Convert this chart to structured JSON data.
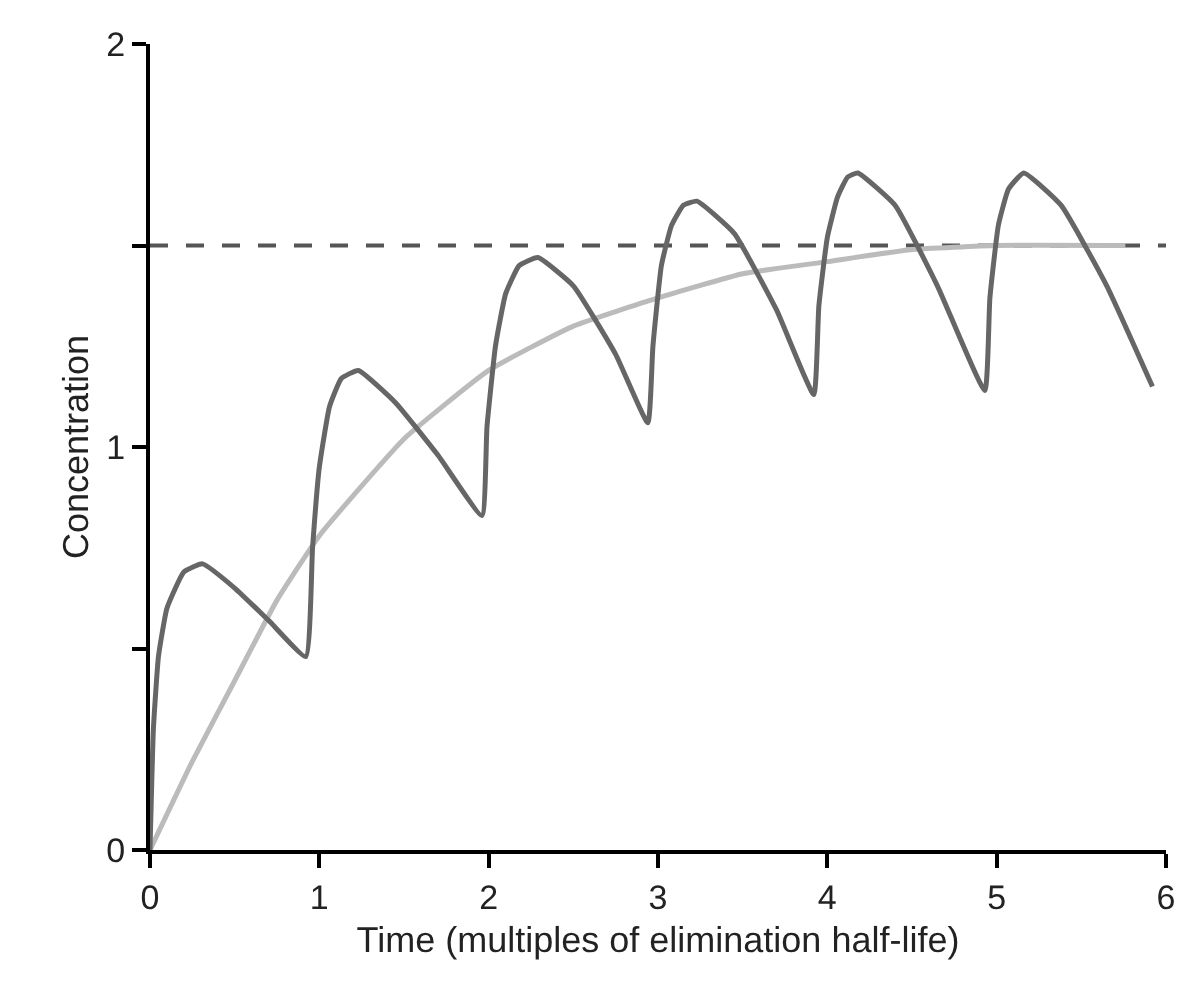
{
  "chart_data": {
    "type": "line",
    "xlabel": "Time (multiples of elimination half-life)",
    "ylabel": "Concentration",
    "xlim": [
      0,
      6
    ],
    "xticks": [
      0,
      1,
      2,
      3,
      4,
      5,
      6
    ],
    "ylim": [
      0,
      2
    ],
    "yticks": [
      0,
      {
        "value": 0.5,
        "label": null
      },
      1,
      {
        "value": 1.5,
        "label": null
      },
      2
    ],
    "grid": false,
    "marker": "none",
    "line_style": "solid",
    "series": [
      {
        "color": "#bbbbbb",
        "x": [
          0,
          0.25,
          0.5,
          0.75,
          1,
          1.5,
          2,
          2.5,
          3,
          3.5,
          4,
          4.5,
          5,
          5.76
        ],
        "values": [
          0,
          0.22,
          0.42,
          0.62,
          0.78,
          1.02,
          1.19,
          1.3,
          1.37,
          1.43,
          1.46,
          1.49,
          1.5,
          1.5
        ]
      },
      {
        "color": "#666666",
        "x": [
          0,
          0.02,
          0.05,
          0.1,
          0.2,
          0.31,
          0.5,
          0.7,
          0.92,
          0.96,
          1.0,
          1.06,
          1.13,
          1.23,
          1.45,
          1.7,
          1.96,
          1.99,
          2.04,
          2.1,
          2.18,
          2.29,
          2.5,
          2.75,
          2.94,
          2.97,
          3.02,
          3.08,
          3.15,
          3.23,
          3.45,
          3.7,
          3.92,
          3.95,
          4.0,
          4.06,
          4.12,
          4.18,
          4.4,
          4.65,
          4.93,
          4.96,
          5.01,
          5.07,
          5.16,
          5.38,
          5.65,
          5.92
        ],
        "values": [
          0,
          0.3,
          0.48,
          0.6,
          0.69,
          0.71,
          0.65,
          0.57,
          0.48,
          0.75,
          0.95,
          1.1,
          1.17,
          1.19,
          1.11,
          0.98,
          0.83,
          1.05,
          1.25,
          1.38,
          1.45,
          1.47,
          1.4,
          1.23,
          1.06,
          1.25,
          1.45,
          1.55,
          1.6,
          1.61,
          1.53,
          1.34,
          1.13,
          1.35,
          1.52,
          1.62,
          1.67,
          1.68,
          1.6,
          1.4,
          1.14,
          1.37,
          1.55,
          1.64,
          1.68,
          1.6,
          1.4,
          1.15
        ]
      }
    ],
    "ref_lines": [
      {
        "axis": "y",
        "value": 1.5,
        "color": "#555555",
        "line_style": "dashed"
      }
    ]
  }
}
